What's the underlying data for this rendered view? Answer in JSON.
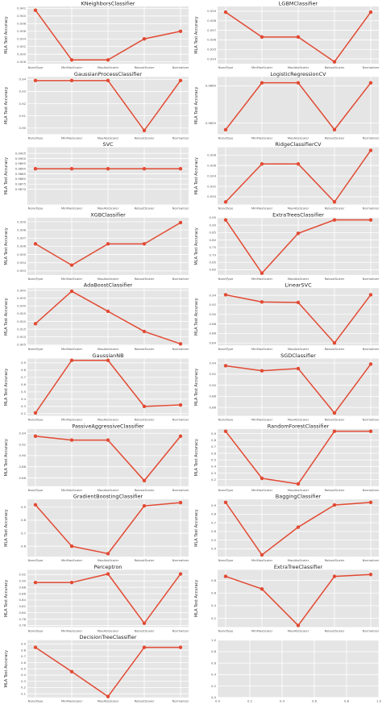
{
  "style": {
    "panel_bg": "#e5e5e5",
    "grid": "#ffffff",
    "line": "#e24a33",
    "page_bg": "#ffffff"
  },
  "shared": {
    "categories": [
      "NoneType",
      "MinMaxScaler",
      "MaxAbsScaler",
      "RobustScaler",
      "Normalizer"
    ],
    "ylabel": "MLA Test Accuracy"
  },
  "chart_data": [
    {
      "type": "line",
      "title": "KNeighborsClassifier",
      "ylim": [
        0.9275,
        0.9425
      ],
      "yticks": [
        0.928,
        0.93,
        0.932,
        0.934,
        0.936,
        0.938,
        0.94,
        0.942
      ],
      "yfmt": 3,
      "values": [
        0.9415,
        0.9285,
        0.9285,
        0.934,
        0.936
      ]
    },
    {
      "type": "line",
      "title": "LGBMClassifier",
      "ylim": [
        0.9335,
        0.9395
      ],
      "yticks": [
        0.934,
        0.935,
        0.936,
        0.937,
        0.938,
        0.939
      ],
      "yfmt": 3,
      "values": [
        0.9389,
        0.9363,
        0.9363,
        0.9337,
        0.9389
      ]
    },
    {
      "type": "line",
      "title": "GaussianProcessClassifier",
      "ylim": [
        0.895,
        0.942
      ],
      "yticks": [
        0.9,
        0.91,
        0.92,
        0.93,
        0.94
      ],
      "yfmt": 2,
      "values": [
        0.939,
        0.939,
        0.939,
        0.898,
        0.939
      ]
    },
    {
      "type": "line",
      "title": "LogisticRegressionCV",
      "ylim": [
        0.98535,
        0.98612
      ],
      "yticks": [
        0.9855,
        0.986,
        0.9865,
        0.987,
        0.9875,
        0.988,
        0.9885
      ],
      "ytick_labels": [
        "0.9855",
        "0.9860",
        "0.9865",
        "0.9870",
        "0.9875",
        "0.9880",
        "0.9885"
      ],
      "yfmt": 4,
      "values": [
        0.98541,
        0.98604,
        0.98604,
        0.98541,
        0.98604
      ]
    },
    {
      "type": "line",
      "title": "SVC",
      "ylim": [
        0.9855,
        0.9911
      ],
      "yticks": [
        0.987,
        0.9875,
        0.988,
        0.9885,
        0.989,
        0.9895,
        0.99,
        0.9905
      ],
      "yfmt": 4,
      "values": [
        0.989,
        0.989,
        0.989,
        0.989,
        0.989
      ]
    },
    {
      "type": "line",
      "title": "RidgeClassifierCV",
      "ylim": [
        0.9285,
        0.9395
      ],
      "yticks": [
        0.93,
        0.932,
        0.934,
        0.936,
        0.938
      ],
      "yfmt": 3,
      "values": [
        0.929,
        0.9363,
        0.9363,
        0.929,
        0.9389
      ]
    },
    {
      "type": "line",
      "title": "XGBClassifier",
      "ylim": [
        0.9325,
        0.9395
      ],
      "yticks": [
        0.933,
        0.934,
        0.935,
        0.936,
        0.937,
        0.938,
        0.939
      ],
      "yfmt": 3,
      "values": [
        0.9363,
        0.9337,
        0.9363,
        0.9363,
        0.9389
      ]
    },
    {
      "type": "line",
      "title": "ExtraTreesClassifier",
      "ylim": [
        0.565,
        0.95
      ],
      "yticks": [
        0.6,
        0.65,
        0.7,
        0.75,
        0.8,
        0.85,
        0.9,
        0.95
      ],
      "yfmt": 2,
      "values": [
        0.935,
        0.577,
        0.845,
        0.935,
        0.935
      ]
    },
    {
      "type": "line",
      "title": "AdaBoostClassifier",
      "ylim": [
        0.9045,
        0.9415
      ],
      "yticks": [
        0.905,
        0.91,
        0.915,
        0.92,
        0.925,
        0.93,
        0.935,
        0.94
      ],
      "yfmt": 3,
      "values": [
        0.9185,
        0.9395,
        0.9265,
        0.9135,
        0.9055
      ]
    },
    {
      "type": "line",
      "title": "LinearSVC",
      "ylim": [
        0.835,
        0.955
      ],
      "yticks": [
        0.84,
        0.86,
        0.88,
        0.9,
        0.92,
        0.94
      ],
      "yfmt": 2,
      "values": [
        0.941,
        0.926,
        0.925,
        0.84,
        0.941
      ]
    },
    {
      "type": "line",
      "title": "GaussianNB",
      "ylim": [
        0.17,
        0.96
      ],
      "yticks": [
        0.2,
        0.3,
        0.4,
        0.5,
        0.6,
        0.7,
        0.8,
        0.9
      ],
      "yfmt": 1,
      "values": [
        0.21,
        0.935,
        0.935,
        0.3,
        0.32
      ]
    },
    {
      "type": "line",
      "title": "SGDClassifier",
      "ylim": [
        0.845,
        0.948
      ],
      "yticks": [
        0.86,
        0.88,
        0.9,
        0.92,
        0.94
      ],
      "yfmt": 2,
      "values": [
        0.935,
        0.926,
        0.93,
        0.85,
        0.938
      ]
    },
    {
      "type": "line",
      "title": "PassiveAggressiveClassifier",
      "ylim": [
        0.845,
        0.948
      ],
      "yticks": [
        0.86,
        0.88,
        0.9,
        0.92,
        0.94
      ],
      "yfmt": 2,
      "values": [
        0.935,
        0.928,
        0.928,
        0.855,
        0.935
      ]
    },
    {
      "type": "line",
      "title": "RandomForestClassifier",
      "ylim": [
        0.1,
        0.97
      ],
      "yticks": [
        0.2,
        0.3,
        0.4,
        0.5,
        0.6,
        0.7,
        0.8,
        0.9
      ],
      "yfmt": 1,
      "values": [
        0.935,
        0.22,
        0.135,
        0.935,
        0.935
      ]
    },
    {
      "type": "line",
      "title": "GradientBoostingClassifier",
      "ylim": [
        0.52,
        0.96
      ],
      "yticks": [
        0.6,
        0.7,
        0.8,
        0.9
      ],
      "yfmt": 1,
      "values": [
        0.918,
        0.6,
        0.543,
        0.91,
        0.935
      ]
    },
    {
      "type": "line",
      "title": "BaggingClassifier",
      "ylim": [
        0.31,
        0.97
      ],
      "yticks": [
        0.3,
        0.4,
        0.5,
        0.6,
        0.7,
        0.8,
        0.9
      ],
      "yfmt": 1,
      "values": [
        0.935,
        0.33,
        0.65,
        0.905,
        0.935
      ]
    },
    {
      "type": "line",
      "title": "Perceptron",
      "ylim": [
        0.755,
        0.935
      ],
      "yticks": [
        0.76,
        0.78,
        0.8,
        0.82,
        0.84,
        0.86,
        0.88,
        0.9,
        0.92
      ],
      "yfmt": 2,
      "values": [
        0.895,
        0.895,
        0.922,
        0.767,
        0.922
      ]
    },
    {
      "type": "line",
      "title": "ExtraTreeClassifier",
      "ylim": [
        0.06,
        0.97
      ],
      "yticks": [
        0.2,
        0.4,
        0.6,
        0.8
      ],
      "yfmt": 1,
      "values": [
        0.865,
        0.665,
        0.085,
        0.865,
        0.895
      ]
    },
    {
      "type": "line",
      "title": "DecisionTreeClassifier",
      "ylim": [
        0.04,
        0.96
      ],
      "yticks": [
        0.1,
        0.2,
        0.3,
        0.4,
        0.5,
        0.6,
        0.7,
        0.8,
        0.9
      ],
      "yfmt": 1,
      "values": [
        0.845,
        0.455,
        0.055,
        0.845,
        0.845
      ]
    },
    {
      "type": "empty",
      "title": "",
      "xlim": [
        0,
        1
      ],
      "ylim": [
        0,
        1
      ],
      "xticks": [
        0.0,
        0.2,
        0.4,
        0.6,
        0.8,
        1.0
      ],
      "yticks": [
        0.0,
        0.2,
        0.4,
        0.6,
        0.8,
        1.0
      ],
      "yfmt": 1,
      "xfmt": 1
    }
  ]
}
